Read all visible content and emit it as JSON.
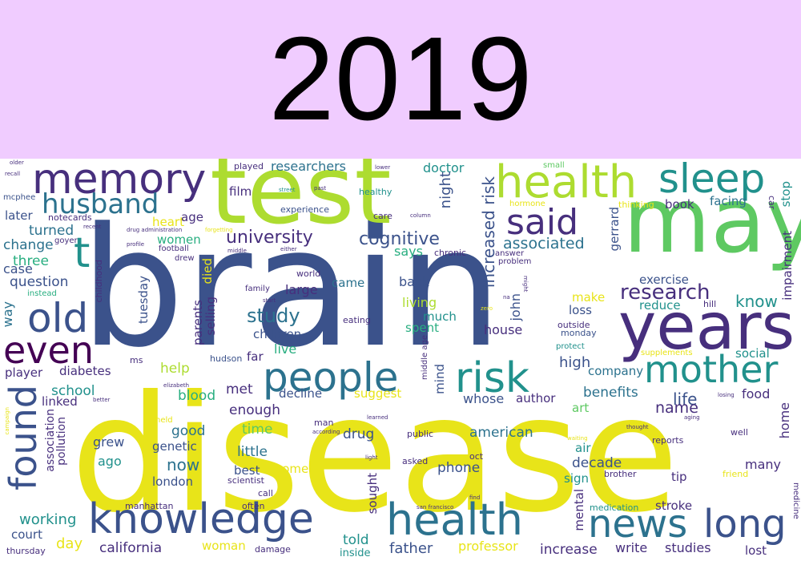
{
  "title": "2019",
  "colors": {
    "header_bg": "#f0ccff",
    "dark_purple": "#440154",
    "purple": "#472f7d",
    "blue": "#3b528b",
    "teal_blue": "#2c728e",
    "teal": "#21918c",
    "green_teal": "#28ae80",
    "green": "#5ec962",
    "lime": "#addc30",
    "yellow": "#e8e419"
  },
  "words": {
    "brain": "brain",
    "disease": "disease",
    "test": "test",
    "may": "may",
    "years": "years",
    "memory": "memory",
    "health": "health",
    "sleep": "sleep",
    "husband": "husband",
    "said": "said",
    "t": "t",
    "old": "old",
    "even": "even",
    "found": "found",
    "people": "people",
    "risk": "risk",
    "mother": "mother",
    "knowledge": "knowledge",
    "news": "news",
    "long": "long",
    "health2": "health",
    "university": "university",
    "cognitive": "cognitive",
    "study": "study",
    "research": "research",
    "associated": "associated",
    "increased_risk": "increased risk",
    "researchers": "researchers",
    "doctor": "doctor",
    "night": "night",
    "film": "film",
    "experience": "experience",
    "heart": "heart",
    "age": "age",
    "women": "women",
    "turned": "turned",
    "change": "change",
    "three": "three",
    "case": "case",
    "question": "question",
    "later": "later",
    "notecards": "notecards",
    "mcphee": "mcphee",
    "way": "way",
    "says": "says",
    "back": "back",
    "came": "came",
    "large": "large",
    "living": "living",
    "much": "much",
    "spent": "spent",
    "children": "children",
    "live": "live",
    "house": "house",
    "john": "john",
    "exercise": "exercise",
    "reduce": "reduce",
    "know": "know",
    "loss": "loss",
    "make": "make",
    "outside": "outside",
    "monday": "monday",
    "protect": "protect",
    "impairment": "impairment",
    "stop": "stop",
    "facing": "facing",
    "book": "book",
    "thinking": "thinking",
    "gerrard": "gerrard",
    "hill": "hill",
    "social": "social",
    "supplements": "supplements",
    "food": "food",
    "life": "life",
    "benefits": "benefits",
    "company": "company",
    "high": "high",
    "author": "author",
    "whose": "whose",
    "suggest": "suggest",
    "decline": "decline",
    "met": "met",
    "blood": "blood",
    "help": "help",
    "diabetes": "diabetes",
    "player": "player",
    "school": "school",
    "linked": "linked",
    "association": "association",
    "pollution": "pollution",
    "grew": "grew",
    "ago": "ago",
    "good": "good",
    "genetic": "genetic",
    "now": "now",
    "london": "london",
    "enough": "enough",
    "time": "time",
    "little": "little",
    "best": "best",
    "come": "come",
    "scientist": "scientist",
    "drug": "drug",
    "american": "american",
    "air": "air",
    "decade": "decade",
    "sign": "sign",
    "brother": "brother",
    "phone": "phone",
    "name": "name",
    "art": "art",
    "home": "home",
    "many": "many",
    "tip": "tip",
    "friend": "friend",
    "well": "well",
    "reports": "reports",
    "stroke": "stroke",
    "medication": "medication",
    "mental": "mental",
    "sought": "sought",
    "told": "told",
    "father": "father",
    "professor": "professor",
    "increase": "increase",
    "write": "write",
    "studies": "studies",
    "lost": "lost",
    "working": "working",
    "court": "court",
    "day": "day",
    "california": "california",
    "woman": "woman",
    "thursday": "thursday",
    "inside": "inside",
    "damage": "damage",
    "manhattan": "manhattan",
    "often": "often",
    "call": "call",
    "tuesday": "tuesday",
    "parents": "parents",
    "selling": "selling",
    "died": "died",
    "far": "far",
    "hudson": "hudson",
    "ms": "ms",
    "chronic": "chronic",
    "answer": "answer",
    "problem": "problem",
    "hormone": "hormone",
    "small": "small",
    "played": "played",
    "healthy": "healthy",
    "care": "care",
    "column": "column",
    "lower": "lower",
    "past": "past",
    "street": "street",
    "drew": "drew",
    "football": "football",
    "profile": "profile",
    "drug_administration": "drug administration",
    "recent": "recent",
    "goyer": "goyer",
    "childhood": "childhood",
    "instead": "instead",
    "family": "family",
    "start": "start",
    "eating": "eating",
    "world": "world",
    "middle": "middle",
    "either": "either",
    "middle_age": "middle age",
    "mind": "mind",
    "forgetting": "forgetting",
    "older": "older",
    "recall": "recall",
    "car": "car",
    "na": "na",
    "might": "might",
    "zero": "zero",
    "oct": "oct",
    "public": "public",
    "asked": "asked",
    "man": "man",
    "according": "according",
    "learned": "learned",
    "held": "held",
    "elizabeth": "elizabeth",
    "better": "better",
    "campaign": "campaign",
    "light": "light",
    "san_francisco": "san francisco",
    "find": "find",
    "medicine": "medicine",
    "losing": "losing",
    "aging": "aging",
    "thought": "thought",
    "waiting": "waiting"
  }
}
